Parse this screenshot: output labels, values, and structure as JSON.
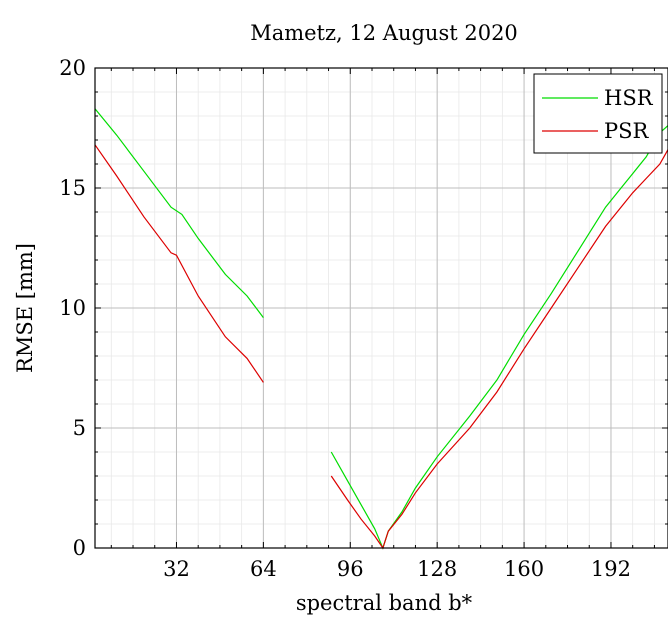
{
  "chart_data": {
    "type": "line",
    "title": "Mametz, 12 August 2020",
    "xlabel": "spectral band b*",
    "ylabel": "RMSE [mm]",
    "xlim": [
      2,
      213
    ],
    "ylim": [
      0,
      20
    ],
    "xticks": [
      32,
      64,
      96,
      128,
      160,
      192
    ],
    "yticks": [
      0,
      5,
      10,
      15,
      20
    ],
    "grid": true,
    "legend_position": "top-right",
    "series": [
      {
        "name": "HSR",
        "color": "#00dd00",
        "segments": [
          {
            "x": [
              2,
              10,
              20,
              30,
              34,
              40,
              50,
              58,
              64
            ],
            "y": [
              18.3,
              17.2,
              15.7,
              14.2,
              13.9,
              12.9,
              11.4,
              10.5,
              9.6
            ]
          },
          {
            "x": [
              89,
              95,
              100,
              105,
              108,
              110,
              115,
              120,
              128,
              140,
              150,
              160,
              170,
              180,
              190,
              195,
              200,
              205,
              210,
              213
            ],
            "y": [
              4.0,
              2.8,
              1.8,
              0.8,
              0.0,
              0.7,
              1.5,
              2.5,
              3.8,
              5.5,
              7.0,
              8.9,
              10.6,
              12.4,
              14.2,
              14.9,
              15.6,
              16.3,
              17.3,
              17.6
            ]
          }
        ]
      },
      {
        "name": "PSR",
        "color": "#dd0000",
        "segments": [
          {
            "x": [
              2,
              10,
              20,
              30,
              32,
              40,
              50,
              58,
              64
            ],
            "y": [
              16.8,
              15.5,
              13.8,
              12.3,
              12.2,
              10.5,
              8.8,
              7.9,
              6.9
            ]
          },
          {
            "x": [
              89,
              95,
              100,
              105,
              108,
              110,
              115,
              120,
              128,
              140,
              150,
              160,
              170,
              180,
              190,
              200,
              205,
              210,
              213
            ],
            "y": [
              3.0,
              2.0,
              1.2,
              0.5,
              0.0,
              0.7,
              1.4,
              2.3,
              3.5,
              5.0,
              6.5,
              8.3,
              10.0,
              11.7,
              13.4,
              14.8,
              15.4,
              16.0,
              16.6
            ]
          }
        ]
      }
    ]
  }
}
